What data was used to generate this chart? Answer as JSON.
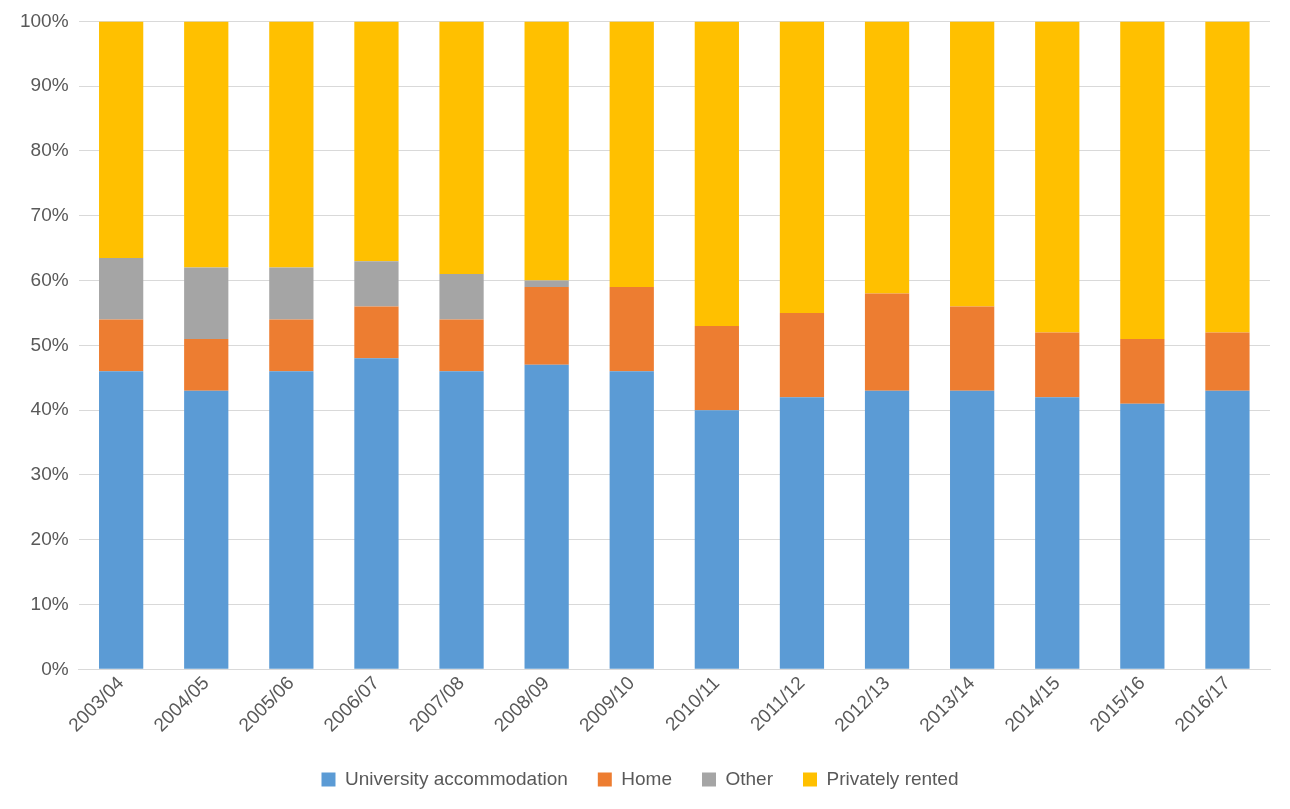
{
  "chart_data": {
    "type": "bar",
    "stacked": true,
    "categories": [
      "2003/04",
      "2004/05",
      "2005/06",
      "2006/07",
      "2007/08",
      "2008/09",
      "2009/10",
      "2010/11",
      "2011/12",
      "2012/13",
      "2013/14",
      "2014/15",
      "2015/16",
      "2016/17"
    ],
    "series": [
      {
        "name": "University accommodation",
        "color": "#5b9bd5",
        "values": [
          46,
          43,
          46,
          48,
          46,
          47,
          46,
          40,
          42,
          43,
          43,
          42,
          41,
          43
        ]
      },
      {
        "name": "Home",
        "color": "#ed7d31",
        "values": [
          8,
          8,
          8,
          8,
          8,
          12,
          13,
          13,
          13,
          15,
          13,
          10,
          10,
          9
        ]
      },
      {
        "name": "Other",
        "color": "#a5a5a5",
        "values": [
          9.5,
          11,
          8,
          7,
          7,
          1,
          0,
          0,
          0,
          0,
          0,
          0,
          0,
          0
        ]
      },
      {
        "name": "Privately rented",
        "color": "#ffc000",
        "values": [
          36.5,
          38,
          38,
          37,
          39,
          40,
          41,
          47,
          45,
          42,
          44,
          48,
          49,
          48
        ]
      }
    ],
    "ylim": [
      0,
      100
    ],
    "yticks": [
      {
        "value": 0,
        "label": "0%"
      },
      {
        "value": 10,
        "label": "10%"
      },
      {
        "value": 20,
        "label": "20%"
      },
      {
        "value": 30,
        "label": "30%"
      },
      {
        "value": 40,
        "label": "40%"
      },
      {
        "value": 50,
        "label": "50%"
      },
      {
        "value": 60,
        "label": "60%"
      },
      {
        "value": 70,
        "label": "70%"
      },
      {
        "value": 80,
        "label": "80%"
      },
      {
        "value": 90,
        "label": "90%"
      },
      {
        "value": 100,
        "label": "100%"
      }
    ],
    "grid": "y",
    "legend": "bottom"
  }
}
